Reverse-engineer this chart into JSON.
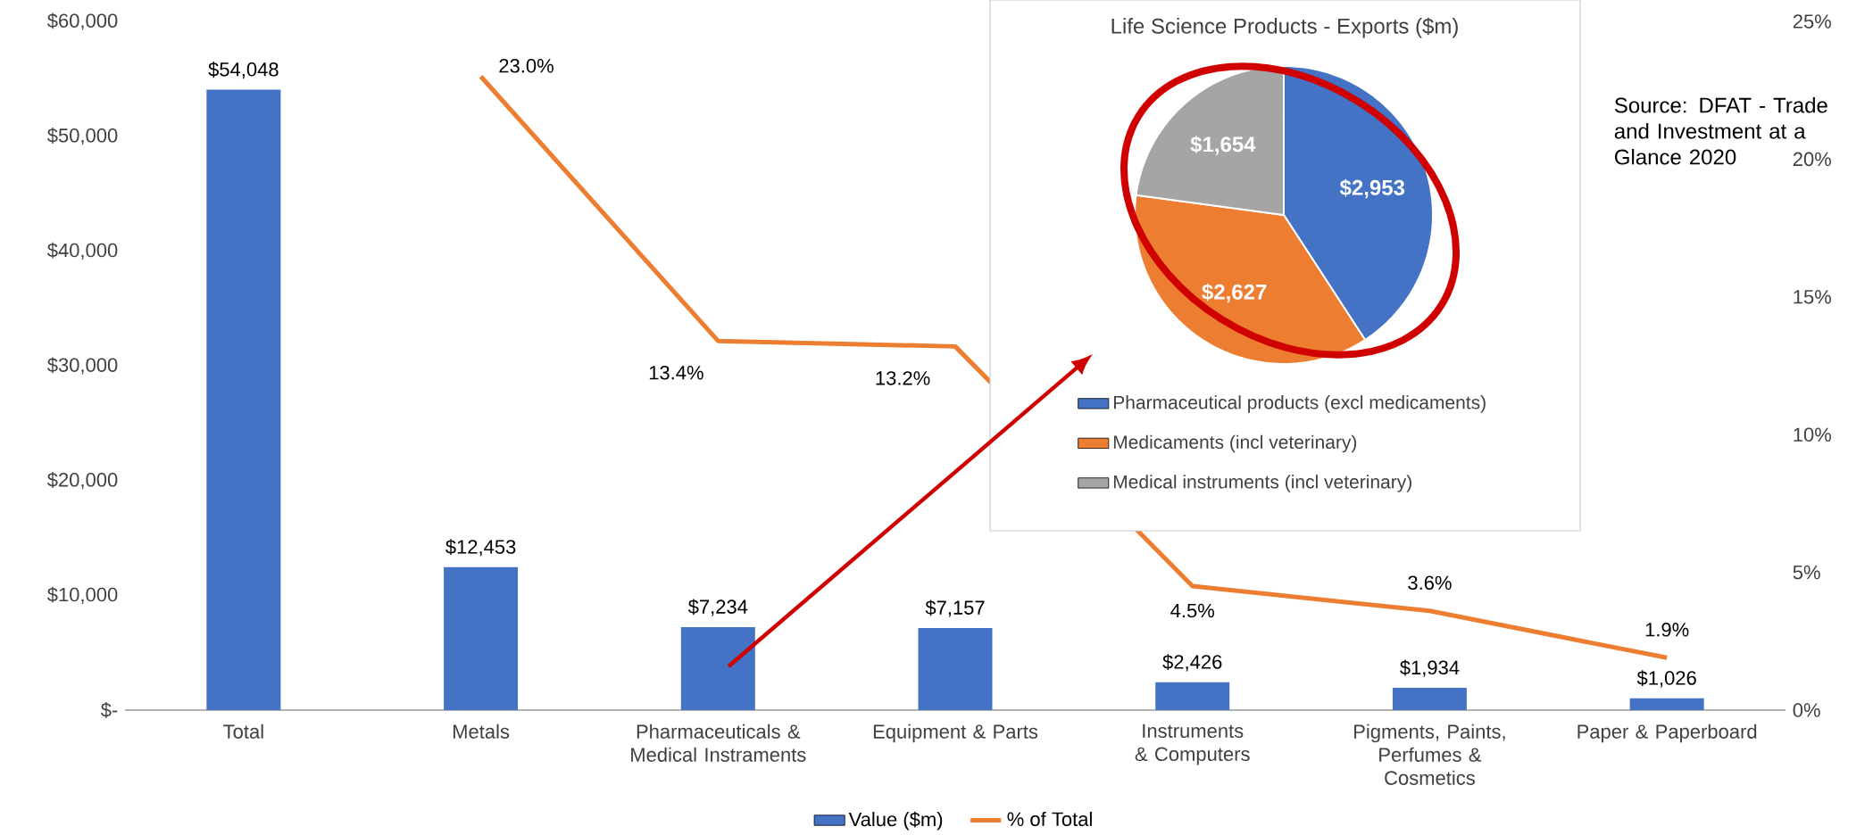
{
  "chart_data": [
    {
      "type": "bar",
      "categories": [
        "Total",
        "Metals",
        "Pharmaceuticals & Medical Instraments",
        "Equipment & Parts",
        "Instruments & Computers",
        "Pigments, Paints, Perfumes & Cosmetics",
        "Paper & Paperboard"
      ],
      "series": [
        {
          "name": "Value ($m)",
          "color": "#4472c4",
          "values": [
            54048,
            12453,
            7234,
            7157,
            2426,
            1934,
            1026
          ],
          "value_labels": [
            "$54,048",
            "$12,453",
            "$7,234",
            "$7,157",
            "$2,426",
            "$1,934",
            "$1,026"
          ]
        },
        {
          "name": "% of Total",
          "type": "line",
          "axis": "y2",
          "color": "#ed7d31",
          "values": [
            null,
            23.0,
            13.4,
            13.2,
            4.5,
            3.6,
            1.9
          ],
          "value_labels": [
            null,
            "23.0%",
            "13.4%",
            "13.2%",
            "4.5%",
            "3.6%",
            "1.9%"
          ]
        }
      ],
      "ylim": [
        0,
        60000
      ],
      "yticks": [
        {
          "value": 0,
          "label": "$-"
        },
        {
          "value": 10000,
          "label": "$10,000"
        },
        {
          "value": 20000,
          "label": "$20,000"
        },
        {
          "value": 30000,
          "label": "$30,000"
        },
        {
          "value": 40000,
          "label": "$40,000"
        },
        {
          "value": 50000,
          "label": "$50,000"
        },
        {
          "value": 60000,
          "label": "$60,000"
        }
      ],
      "y2lim": [
        0,
        25
      ],
      "y2ticks": [
        {
          "value": 0,
          "label": "0%"
        },
        {
          "value": 5,
          "label": "5%"
        },
        {
          "value": 10,
          "label": "10%"
        },
        {
          "value": 15,
          "label": "15%"
        },
        {
          "value": 20,
          "label": "20%"
        },
        {
          "value": 25,
          "label": "25%"
        }
      ],
      "legend": "bottom",
      "annotations": [
        "Source: DFAT - Trade and Investment at a Glance 2020"
      ]
    },
    {
      "type": "pie",
      "title": "Life Science Products - Exports ($m)",
      "categories": [
        "Pharmaceutical products (excl medicaments)",
        "Medicaments (incl veterinary)",
        "Medical instruments (incl veterinary)"
      ],
      "values": [
        2953,
        2627,
        1654
      ],
      "colors": [
        "#4472c4",
        "#ed7d31",
        "#a5a5a5"
      ],
      "value_labels": [
        "$2,953",
        "$2,627",
        "$1,654"
      ],
      "legend": "bottom"
    }
  ]
}
